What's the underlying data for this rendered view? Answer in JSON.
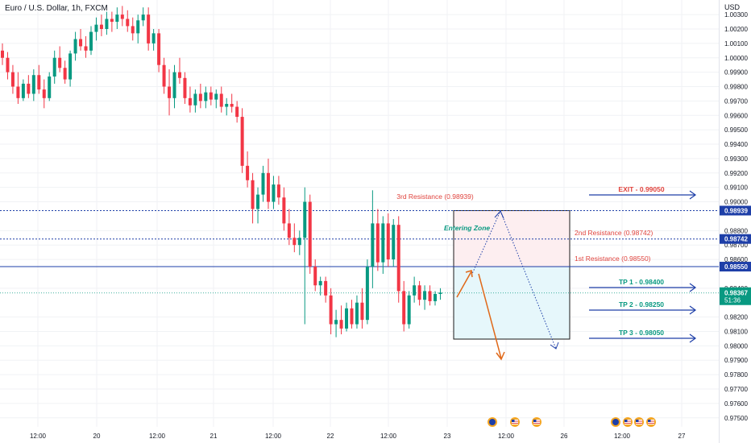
{
  "header": {
    "title": "Euro / U.S. Dollar, 1h, FXCM",
    "currency": "USD"
  },
  "colors": {
    "up": "#089981",
    "down": "#f23645",
    "blue": "#1e3fa8",
    "red_text": "#e0443e",
    "green_text": "#089981",
    "arrow_orange": "#e0691a",
    "zone_pink": "#fdeef0",
    "zone_cyan": "#e6f7fb"
  },
  "chart_data": {
    "type": "candlestick",
    "symbol": "Euro / U.S. Dollar",
    "timeframe": "1h",
    "source": "FXCM",
    "y_axis": {
      "ticks": [
        "1.00300",
        "1.00200",
        "1.00100",
        "1.00000",
        "0.99900",
        "0.99800",
        "0.99700",
        "0.99600",
        "0.99500",
        "0.99400",
        "0.99300",
        "0.99200",
        "0.99100",
        "0.99000",
        "0.98800",
        "0.98700",
        "0.98600",
        "0.98400",
        "0.98200",
        "0.98100",
        "0.98000",
        "0.97900",
        "0.97800",
        "0.97700",
        "0.97600",
        "0.97500"
      ]
    },
    "x_axis": {
      "ticks": [
        "12:00",
        "20",
        "12:00",
        "21",
        "12:00",
        "22",
        "12:00",
        "23",
        "12:00",
        "26",
        "12:00",
        "27"
      ]
    },
    "price_labels": [
      {
        "text": "0.98939",
        "style": "dotted-blue"
      },
      {
        "text": "0.98742",
        "style": "dotted-blue"
      },
      {
        "text": "0.98550",
        "style": "solid-blue"
      },
      {
        "text": "0.98367",
        "sub": "51:36",
        "style": "current-green"
      }
    ],
    "levels": [
      {
        "label": "3rd Resistance (0.98939)",
        "value": 0.98939,
        "line": "dotted"
      },
      {
        "label": "2nd Resistance (0.98742)",
        "value": 0.98742,
        "line": "dotted"
      },
      {
        "label": "1st Resistance (0.98550)",
        "value": 0.9855,
        "line": "solid"
      }
    ],
    "targets": [
      {
        "label": "EXIT - 0.99050",
        "value": 0.9905,
        "color": "red"
      },
      {
        "label": "TP 1 - 0.98400",
        "value": 0.984,
        "color": "green"
      },
      {
        "label": "TP 2 - 0.98250",
        "value": 0.9825,
        "color": "green"
      },
      {
        "label": "TP 3 - 0.98050",
        "value": 0.9805,
        "color": "green"
      }
    ],
    "zone_label": "Entering Zone",
    "candles": [
      [
        1.0005,
        1.001,
        0.9995,
        1.0
      ],
      [
        1.0,
        1.0004,
        0.9985,
        0.999
      ],
      [
        0.999,
        0.9995,
        0.9975,
        0.998
      ],
      [
        0.998,
        0.999,
        0.9968,
        0.9972
      ],
      [
        0.9972,
        0.9985,
        0.997,
        0.9982
      ],
      [
        0.9982,
        0.9988,
        0.9972,
        0.9975
      ],
      [
        0.9975,
        0.9992,
        0.997,
        0.9988
      ],
      [
        0.9988,
        0.9995,
        0.9975,
        0.9978
      ],
      [
        0.9978,
        0.9985,
        0.9965,
        0.9972
      ],
      [
        0.9972,
        0.999,
        0.997,
        0.9987
      ],
      [
        0.9987,
        1.0005,
        0.9982,
        1.0
      ],
      [
        1.0,
        1.0008,
        0.999,
        0.9993
      ],
      [
        0.9993,
        0.9998,
        0.9982,
        0.9985
      ],
      [
        0.9985,
        1.0005,
        0.998,
        1.0003
      ],
      [
        1.0003,
        1.0018,
        0.9998,
        1.0013
      ],
      [
        1.0013,
        1.002,
        1.0005,
        1.0008
      ],
      [
        1.0008,
        1.0015,
        1.0,
        1.0005
      ],
      [
        1.0005,
        1.0022,
        1.0002,
        1.0018
      ],
      [
        1.0018,
        1.0028,
        1.0012,
        1.0023
      ],
      [
        1.0023,
        1.003,
        1.0015,
        1.002
      ],
      [
        1.002,
        1.0032,
        1.0016,
        1.0027
      ],
      [
        1.0027,
        1.0032,
        1.0018,
        1.0025
      ],
      [
        1.0025,
        1.0035,
        1.002,
        1.003
      ],
      [
        1.003,
        1.0036,
        1.0022,
        1.0027
      ],
      [
        1.0027,
        1.0033,
        1.0018,
        1.0022
      ],
      [
        1.0022,
        1.0028,
        1.0012,
        1.0017
      ],
      [
        1.0017,
        1.003,
        1.001,
        1.0026
      ],
      [
        1.0026,
        1.0035,
        1.0022,
        1.003
      ],
      [
        1.003,
        1.0035,
        1.0005,
        1.001
      ],
      [
        1.001,
        1.002,
        1.0005,
        1.0017
      ],
      [
        1.0017,
        1.002,
        0.999,
        0.9995
      ],
      [
        0.9995,
        1.0,
        0.9975,
        0.998
      ],
      [
        0.998,
        0.9992,
        0.996,
        0.9972
      ],
      [
        0.9972,
        0.9995,
        0.9965,
        0.999
      ],
      [
        0.999,
        1.0,
        0.9982,
        0.9986
      ],
      [
        0.9986,
        0.999,
        0.9968,
        0.9972
      ],
      [
        0.9972,
        0.998,
        0.9962,
        0.9967
      ],
      [
        0.9967,
        0.9978,
        0.9962,
        0.9975
      ],
      [
        0.9975,
        0.9982,
        0.9965,
        0.997
      ],
      [
        0.997,
        0.998,
        0.9965,
        0.9976
      ],
      [
        0.9976,
        0.998,
        0.9967,
        0.9971
      ],
      [
        0.9971,
        0.9978,
        0.9965,
        0.9975
      ],
      [
        0.9975,
        0.998,
        0.9962,
        0.9966
      ],
      [
        0.9966,
        0.9972,
        0.996,
        0.9968
      ],
      [
        0.9968,
        0.9975,
        0.9962,
        0.9966
      ],
      [
        0.9966,
        0.997,
        0.9955,
        0.9959
      ],
      [
        0.9959,
        0.9965,
        0.992,
        0.9925
      ],
      [
        0.9925,
        0.9935,
        0.991,
        0.9915
      ],
      [
        0.9915,
        0.992,
        0.9885,
        0.9895
      ],
      [
        0.9895,
        0.991,
        0.9885,
        0.9905
      ],
      [
        0.9905,
        0.9925,
        0.99,
        0.992
      ],
      [
        0.992,
        0.993,
        0.9895,
        0.99
      ],
      [
        0.99,
        0.9918,
        0.9895,
        0.9912
      ],
      [
        0.9912,
        0.9918,
        0.9898,
        0.9903
      ],
      [
        0.9903,
        0.991,
        0.988,
        0.9885
      ],
      [
        0.9885,
        0.9895,
        0.987,
        0.9875
      ],
      [
        0.9875,
        0.9885,
        0.9865,
        0.987
      ],
      [
        0.987,
        0.988,
        0.9863,
        0.9875
      ],
      [
        0.9875,
        0.991,
        0.9815,
        0.99
      ],
      [
        0.99,
        0.9905,
        0.985,
        0.9855
      ],
      [
        0.9855,
        0.986,
        0.9838,
        0.9842
      ],
      [
        0.9842,
        0.9848,
        0.9835,
        0.9845
      ],
      [
        0.9845,
        0.9848,
        0.983,
        0.9835
      ],
      [
        0.9835,
        0.984,
        0.9808,
        0.9815
      ],
      [
        0.9815,
        0.9825,
        0.9806,
        0.9818
      ],
      [
        0.9818,
        0.9828,
        0.9808,
        0.9812
      ],
      [
        0.9812,
        0.983,
        0.981,
        0.9826
      ],
      [
        0.9826,
        0.9832,
        0.9812,
        0.9815
      ],
      [
        0.9815,
        0.9835,
        0.9812,
        0.983
      ],
      [
        0.983,
        0.984,
        0.9812,
        0.9818
      ],
      [
        0.9818,
        0.986,
        0.9815,
        0.9855
      ],
      [
        0.9855,
        0.9908,
        0.984,
        0.9885
      ],
      [
        0.9885,
        0.9895,
        0.9852,
        0.9858
      ],
      [
        0.9858,
        0.989,
        0.985,
        0.9885
      ],
      [
        0.9885,
        0.9892,
        0.9855,
        0.986
      ],
      [
        0.986,
        0.9888,
        0.9855,
        0.9884
      ],
      [
        0.9884,
        0.989,
        0.983,
        0.9838
      ],
      [
        0.9838,
        0.9845,
        0.981,
        0.9815
      ],
      [
        0.9815,
        0.9838,
        0.9812,
        0.9835
      ],
      [
        0.9835,
        0.9848,
        0.983,
        0.9842
      ],
      [
        0.9842,
        0.9845,
        0.9828,
        0.9832
      ],
      [
        0.9832,
        0.9842,
        0.9825,
        0.9838
      ],
      [
        0.9838,
        0.9842,
        0.9828,
        0.9831
      ],
      [
        0.9831,
        0.9838,
        0.9828,
        0.9836
      ],
      [
        0.9836,
        0.984,
        0.9832,
        0.9837
      ]
    ]
  },
  "calendar": {
    "event_count": 7
  }
}
